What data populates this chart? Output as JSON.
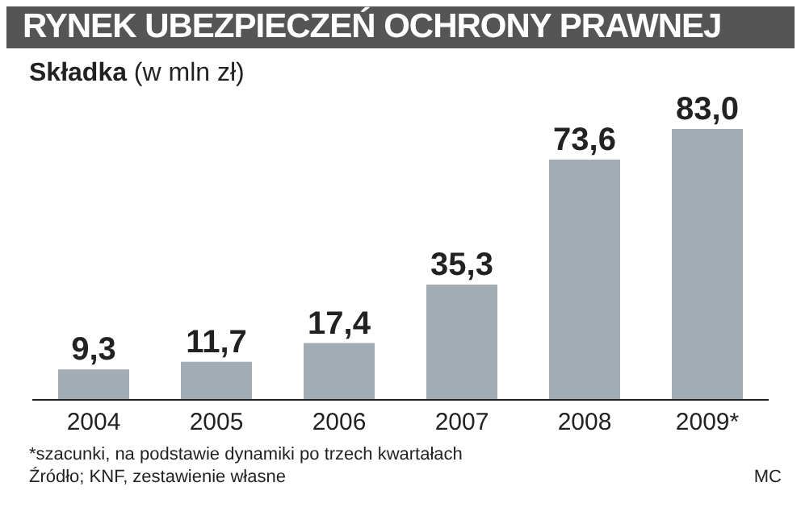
{
  "chart_data": {
    "type": "bar",
    "title": "RYNEK UBEZPIECZEŃ OCHRONY PRAWNEJ",
    "subtitle": "Składka (w mln zł)",
    "categories": [
      "2004",
      "2005",
      "2006",
      "2007",
      "2008",
      "2009*"
    ],
    "values": [
      9.3,
      11.7,
      17.4,
      35.3,
      73.6,
      83.0
    ],
    "value_labels": [
      "9,3",
      "11,7",
      "17,4",
      "35,3",
      "73,6",
      "83,0"
    ],
    "color": "#a2acb4",
    "annotations": [
      "*szacunki, na podstawie dynamiki po trzech kwartałach",
      "Źródło; KNF, zestawienie własne",
      "MC"
    ]
  }
}
